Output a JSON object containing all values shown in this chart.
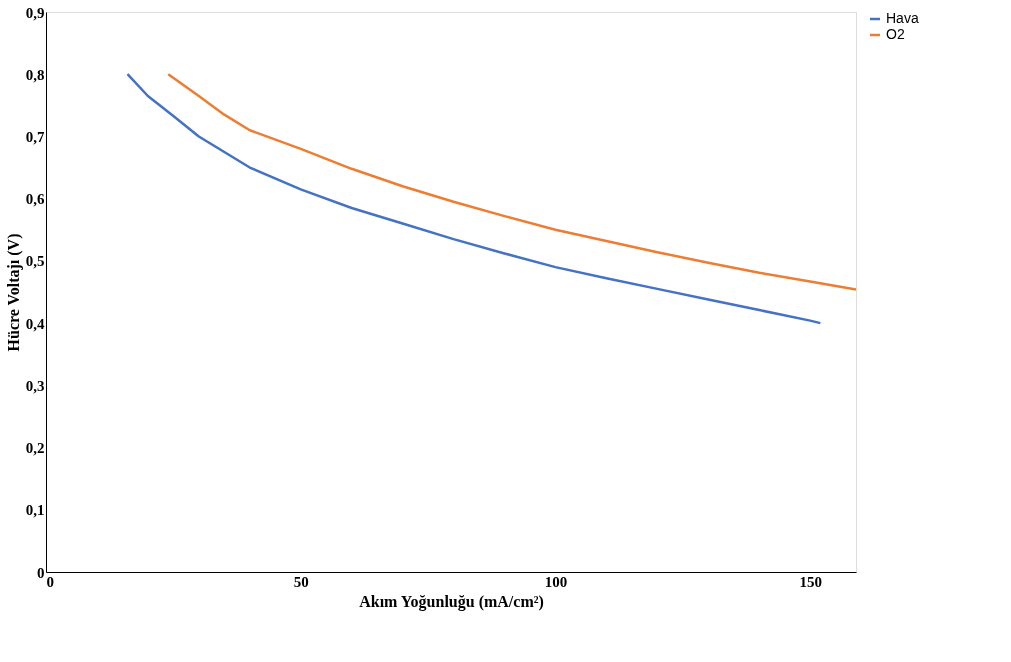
{
  "chart_data": {
    "type": "line",
    "xlabel": "Akım Yoğunluğu (mA/cm²)",
    "ylabel": "Hücre Voltajı (V)",
    "xlim": [
      0,
      159
    ],
    "xticks": [
      0,
      50,
      100,
      150
    ],
    "ylim": [
      0,
      0.9
    ],
    "yticks": [
      {
        "value": 0,
        "label": "0"
      },
      {
        "value": 0.1,
        "label": "0,1"
      },
      {
        "value": 0.2,
        "label": "0,2"
      },
      {
        "value": 0.3,
        "label": "0,3"
      },
      {
        "value": 0.4,
        "label": "0,4"
      },
      {
        "value": 0.5,
        "label": "0,5"
      },
      {
        "value": 0.6,
        "label": "0,6"
      },
      {
        "value": 0.7,
        "label": "0,7"
      },
      {
        "value": 0.8,
        "label": "0,8"
      },
      {
        "value": 0.9,
        "label": "0,9"
      }
    ],
    "grid": false,
    "legend": "top right",
    "marker": "none",
    "line_style": "solid",
    "series": [
      {
        "name": "Hava",
        "color": "#4472c4",
        "x": [
          16,
          20,
          25,
          30,
          40,
          50,
          60,
          70,
          80,
          90,
          100,
          110,
          120,
          130,
          140,
          150,
          152
        ],
        "values": [
          0.8,
          0.765,
          0.733,
          0.7,
          0.65,
          0.615,
          0.585,
          0.56,
          0.535,
          0.512,
          0.49,
          0.472,
          0.455,
          0.438,
          0.421,
          0.404,
          0.4
        ]
      },
      {
        "name": "O2",
        "color": "#ed7d31",
        "x": [
          24,
          30,
          35,
          40,
          50,
          60,
          70,
          80,
          90,
          100,
          110,
          120,
          130,
          140,
          150,
          159
        ],
        "values": [
          0.8,
          0.765,
          0.735,
          0.71,
          0.68,
          0.648,
          0.62,
          0.595,
          0.572,
          0.55,
          0.532,
          0.514,
          0.497,
          0.481,
          0.467,
          0.454
        ]
      }
    ]
  }
}
